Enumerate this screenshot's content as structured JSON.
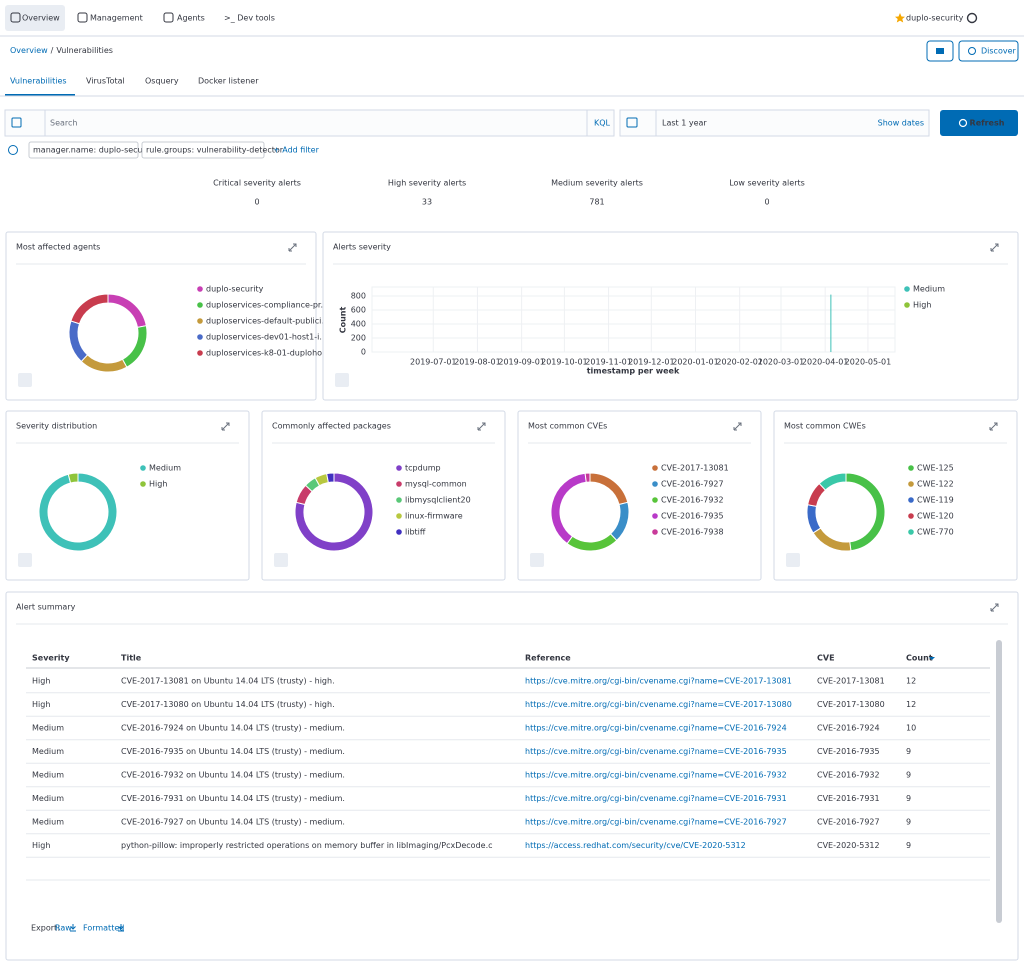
{
  "nav": {
    "items": [
      "Overview",
      "Management",
      "Agents",
      ">_ Dev tools"
    ],
    "user": "duplo-security"
  },
  "breadcrumb": {
    "parent": "Overview",
    "separator": "/",
    "current": "Vulnerabilities"
  },
  "actions": {
    "discover": "Discover"
  },
  "tabs": [
    "Vulnerabilities",
    "VirusTotal",
    "Osquery",
    "Docker listener"
  ],
  "search": {
    "placeholder": "Search",
    "language": "KQL",
    "date_range": "Last 1 year",
    "show_dates": "Show dates",
    "refresh": "Refresh"
  },
  "filters": {
    "pills": [
      "manager.name: duplo-security",
      "rule.groups: vulnerability-detector"
    ],
    "add": "+ Add filter"
  },
  "stats": [
    {
      "label": "Critical severity alerts",
      "value": 0,
      "color": "#bd271e"
    },
    {
      "label": "High severity alerts",
      "value": 33,
      "color": "#006bb4"
    },
    {
      "label": "Medium severity alerts",
      "value": 781,
      "color": "#017d73"
    },
    {
      "label": "Low severity alerts",
      "value": 0,
      "color": "#69707d"
    }
  ],
  "donuts": [
    {
      "title": "Most affected agents",
      "labels": [
        "duplo-security",
        "duploservices-compliance-pr...",
        "duploservices-default-publici...",
        "duploservices-dev01-host1-i...",
        "duploservices-k8-01-duploho..."
      ],
      "values": [
        22,
        20,
        20,
        18,
        20
      ],
      "colors": [
        "#c83fb4",
        "#48c148",
        "#c49a3c",
        "#4a6bc8",
        "#c83c4e"
      ]
    },
    {
      "title": "Severity distribution",
      "labels": [
        "Medium",
        "High"
      ],
      "values": [
        96,
        4
      ],
      "colors": [
        "#3ec1b8",
        "#8fc43a"
      ]
    },
    {
      "title": "Commonly affected packages",
      "labels": [
        "tcpdump",
        "mysql-common",
        "libmysqlclient20",
        "linux-firmware",
        "libtiff"
      ],
      "values": [
        79,
        8,
        5,
        5,
        3
      ],
      "colors": [
        "#8040c8",
        "#c83c6a",
        "#5ac878",
        "#b8c840",
        "#4030c0"
      ]
    },
    {
      "title": "Most common CVEs",
      "labels": [
        "CVE-2017-13081",
        "CVE-2016-7927",
        "CVE-2016-7932",
        "CVE-2016-7935",
        "CVE-2016-7938"
      ],
      "values": [
        21,
        17,
        22,
        38,
        2
      ],
      "colors": [
        "#c8703a",
        "#3a8ec8",
        "#58c43a",
        "#b83ac8",
        "#c83a9a"
      ]
    },
    {
      "title": "Most common CWEs",
      "labels": [
        "CWE-125",
        "CWE-122",
        "CWE-119",
        "CWE-120",
        "CWE-770"
      ],
      "values": [
        48,
        18,
        12,
        10,
        12
      ],
      "colors": [
        "#48c148",
        "#c49a3c",
        "#3a6ac8",
        "#c83c4e",
        "#3ac8a8"
      ]
    }
  ],
  "alerts_severity": {
    "title": "Alerts severity",
    "x_label": "timestamp per week",
    "y_label": "Count",
    "x": [
      "2020-04-05"
    ],
    "series": [
      {
        "name": "Medium",
        "color": "#3ec1b8",
        "values": [
          820
        ]
      },
      {
        "name": "High",
        "color": "#8fc43a",
        "values": [
          null
        ]
      }
    ],
    "xlim": [
      "2019-05-19",
      "2020-05-20"
    ],
    "xticks": [
      "2019-07-01",
      "2019-08-01",
      "2019-09-01",
      "2019-10-01",
      "2019-11-01",
      "2019-12-01",
      "2020-01-01",
      "2020-02-01",
      "2020-03-01",
      "2020-04-01",
      "2020-05-01"
    ],
    "ylim": [
      0,
      900
    ],
    "yticks": [
      0,
      200,
      400,
      600,
      800
    ],
    "grid": true
  },
  "alert_summary": {
    "title": "Alert summary",
    "columns": [
      "Severity",
      "Title",
      "Reference",
      "CVE",
      "Count"
    ],
    "rows": [
      [
        "High",
        "CVE-2017-13081 on Ubuntu 14.04 LTS (trusty) - high.",
        "https://cve.mitre.org/cgi-bin/cvename.cgi?name=CVE-2017-13081",
        "CVE-2017-13081",
        12
      ],
      [
        "High",
        "CVE-2017-13080 on Ubuntu 14.04 LTS (trusty) - high.",
        "https://cve.mitre.org/cgi-bin/cvename.cgi?name=CVE-2017-13080",
        "CVE-2017-13080",
        12
      ],
      [
        "Medium",
        "CVE-2016-7924 on Ubuntu 14.04 LTS (trusty) - medium.",
        "https://cve.mitre.org/cgi-bin/cvename.cgi?name=CVE-2016-7924",
        "CVE-2016-7924",
        10
      ],
      [
        "Medium",
        "CVE-2016-7935 on Ubuntu 14.04 LTS (trusty) - medium.",
        "https://cve.mitre.org/cgi-bin/cvename.cgi?name=CVE-2016-7935",
        "CVE-2016-7935",
        9
      ],
      [
        "Medium",
        "CVE-2016-7932 on Ubuntu 14.04 LTS (trusty) - medium.",
        "https://cve.mitre.org/cgi-bin/cvename.cgi?name=CVE-2016-7932",
        "CVE-2016-7932",
        9
      ],
      [
        "Medium",
        "CVE-2016-7931 on Ubuntu 14.04 LTS (trusty) - medium.",
        "https://cve.mitre.org/cgi-bin/cvename.cgi?name=CVE-2016-7931",
        "CVE-2016-7931",
        9
      ],
      [
        "Medium",
        "CVE-2016-7927 on Ubuntu 14.04 LTS (trusty) - medium.",
        "https://cve.mitre.org/cgi-bin/cvename.cgi?name=CVE-2016-7927",
        "CVE-2016-7927",
        9
      ],
      [
        "High",
        "python-pillow: improperly restricted operations on memory buffer in libImaging/PcxDecode.c",
        "https://access.redhat.com/security/cve/CVE-2020-5312",
        "CVE-2020-5312",
        9
      ]
    ],
    "export": {
      "label": "Export:",
      "raw": "Raw",
      "formatted": "Formatted"
    }
  }
}
